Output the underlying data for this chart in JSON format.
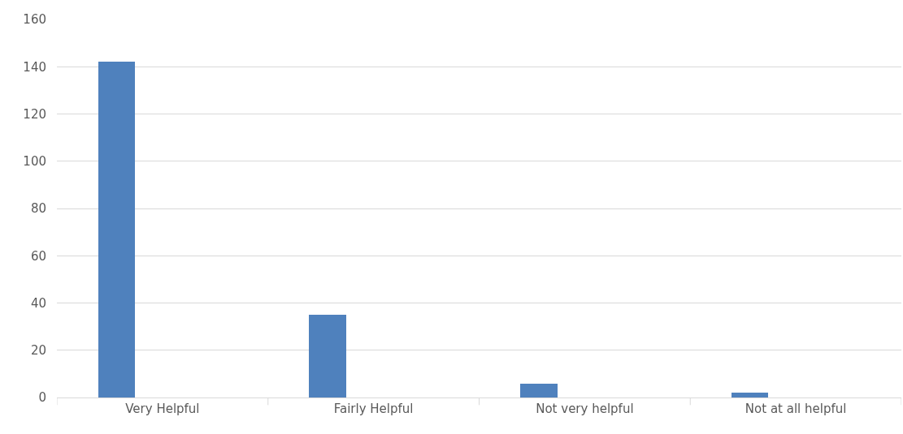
{
  "chart_data": {
    "type": "bar",
    "categories": [
      "Very Helpful",
      "Fairly Helpful",
      "Not very helpful",
      "Not at all helpful"
    ],
    "values": [
      142,
      35,
      6,
      2
    ],
    "color": "#4f81bd",
    "ylim": [
      0,
      160
    ],
    "yticks": [
      0,
      20,
      40,
      60,
      80,
      100,
      120,
      140,
      160
    ],
    "grid": "y",
    "legend": false
  }
}
